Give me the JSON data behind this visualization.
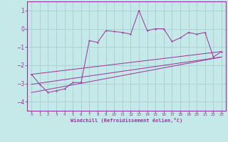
{
  "title": "",
  "xlabel": "Windchill (Refroidissement éolien,°C)",
  "ylabel": "",
  "background_color": "#c5e8e8",
  "grid_color": "#a8d0d0",
  "line_color": "#993399",
  "spine_color": "#993399",
  "xlim": [
    -0.5,
    23.5
  ],
  "ylim": [
    -4.5,
    1.5
  ],
  "yticks": [
    -4,
    -3,
    -2,
    -1,
    0,
    1
  ],
  "xticks": [
    0,
    1,
    2,
    3,
    4,
    5,
    6,
    7,
    8,
    9,
    10,
    11,
    12,
    13,
    14,
    15,
    16,
    17,
    18,
    19,
    20,
    21,
    22,
    23
  ],
  "series": [
    [
      0,
      -2.5,
      1,
      -3.05,
      2,
      -3.5,
      3,
      -3.4,
      4,
      -3.3,
      5,
      -2.95,
      6,
      -2.95,
      7,
      -0.65,
      8,
      -0.75,
      9,
      -0.1,
      10,
      -0.15,
      11,
      -0.2,
      12,
      -0.3,
      13,
      1.0,
      14,
      -0.1,
      15,
      0.0,
      16,
      0.0,
      17,
      -0.7,
      18,
      -0.5,
      19,
      -0.2,
      20,
      -0.3,
      21,
      -0.2,
      22,
      -1.55,
      23,
      -1.25
    ],
    [
      0,
      -2.5,
      23,
      -1.25
    ],
    [
      0,
      -3.05,
      23,
      -1.55
    ],
    [
      0,
      -3.5,
      23,
      -1.55
    ]
  ],
  "figsize": [
    3.2,
    2.0
  ],
  "dpi": 100
}
